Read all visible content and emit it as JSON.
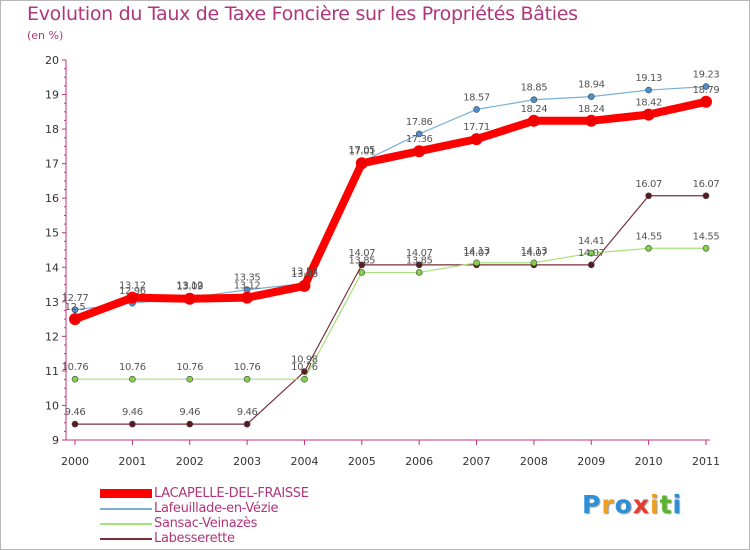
{
  "title": "Evolution du Taux de Taxe Foncière sur les Propriétés Bâties",
  "unit_label": "(en %)",
  "brand": {
    "letters": [
      "P",
      "r",
      "o",
      "x",
      "i",
      "t",
      "i"
    ],
    "colors": [
      "#2d8fd6",
      "#f0a020",
      "#2d8fd6",
      "#e53a2f",
      "#f0a020",
      "#5ab52c",
      "#2d8fd6"
    ]
  },
  "chart_data": {
    "type": "line",
    "title": "Evolution du Taux de Taxe Foncière sur les Propriétés Bâties",
    "ylabel": "(en %)",
    "x": [
      "2000",
      "2001",
      "2002",
      "2003",
      "2004",
      "2005",
      "2006",
      "2007",
      "2008",
      "2009",
      "2010",
      "2011"
    ],
    "ylim": [
      9,
      20
    ],
    "yticks": [
      "9",
      "10",
      "11",
      "12",
      "13",
      "14",
      "15",
      "16",
      "17",
      "18",
      "19",
      "20"
    ],
    "grid": false,
    "series": [
      {
        "name": "LACAPELLE-DEL-FRAISSE",
        "color": "#ff0000",
        "values": [
          12.5,
          13.12,
          13.09,
          13.12,
          13.46,
          17.01,
          17.36,
          17.71,
          18.24,
          18.24,
          18.42,
          18.79
        ],
        "labels": [
          "12.5",
          "13.12",
          "13.09",
          "13.12",
          "13.46",
          "17.01",
          "17.36",
          "17.71",
          "18.24",
          "18.24",
          "18.42",
          "18.79"
        ]
      },
      {
        "name": "Lafeuillade-en-Vézie",
        "color": "#7ab0d8",
        "values": [
          12.77,
          12.96,
          13.12,
          13.35,
          13.53,
          17.05,
          17.86,
          18.57,
          18.85,
          18.94,
          19.13,
          19.23
        ],
        "labels": [
          "12.77",
          "12.96",
          "13.12",
          "13.35",
          "13.53",
          "17.05",
          "17.86",
          "18.57",
          "18.85",
          "18.94",
          "19.13",
          "19.23"
        ]
      },
      {
        "name": "Sansac-Veinazès",
        "color": "#a8e07a",
        "values": [
          10.76,
          10.76,
          10.76,
          10.76,
          10.76,
          13.85,
          13.85,
          14.13,
          14.13,
          14.41,
          14.55,
          14.55
        ],
        "labels": [
          "10.76",
          "10.76",
          "10.76",
          "10.76",
          "10.76",
          "13.85",
          "13.85",
          "14.13",
          "14.13",
          "14.41",
          "14.55",
          "14.55"
        ]
      },
      {
        "name": "Labesserette",
        "color": "#7a2f38",
        "values": [
          9.46,
          9.46,
          9.46,
          9.46,
          10.98,
          14.07,
          14.07,
          14.07,
          14.07,
          14.07,
          16.07,
          16.07
        ],
        "labels": [
          "9.46",
          "9.46",
          "9.46",
          "9.46",
          "10.98",
          "14.07",
          "14.07",
          "14.07",
          "14.07",
          "14.07",
          "16.07",
          "16.07"
        ]
      }
    ]
  }
}
